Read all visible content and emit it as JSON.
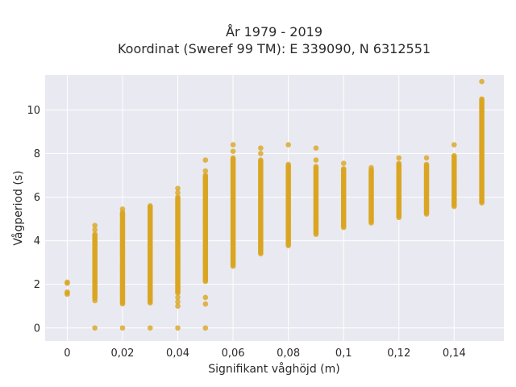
{
  "chart_data": {
    "type": "scatter",
    "title": "År 1979 - 2019",
    "subtitle": "Koordinat (Sweref 99 TM): E 339090, N 6312551",
    "xlabel": "Signifikant våghöjd (m)",
    "ylabel": "Vågperiod (s)",
    "xlim": [
      -0.008,
      0.158
    ],
    "ylim": [
      -0.6,
      11.6
    ],
    "grid": true,
    "legend": "none",
    "colors": {
      "points": "#daa520",
      "plot_bg": "#e9e9f1",
      "grid": "#ffffff"
    },
    "x_ticks": [
      {
        "value": 0,
        "label": "0"
      },
      {
        "value": 0.02,
        "label": "0,02"
      },
      {
        "value": 0.04,
        "label": "0,04"
      },
      {
        "value": 0.06,
        "label": "0,06"
      },
      {
        "value": 0.08,
        "label": "0,08"
      },
      {
        "value": 0.1,
        "label": "0,1"
      },
      {
        "value": 0.12,
        "label": "0,12"
      },
      {
        "value": 0.14,
        "label": "0,14"
      }
    ],
    "y_ticks": [
      {
        "value": 0,
        "label": "0"
      },
      {
        "value": 2,
        "label": "2"
      },
      {
        "value": 4,
        "label": "4"
      },
      {
        "value": 6,
        "label": "6"
      },
      {
        "value": 8,
        "label": "8"
      },
      {
        "value": 10,
        "label": "10"
      }
    ],
    "columns": [
      {
        "x": 0.0,
        "low": 1.5,
        "high": 1.65,
        "extra": [
          2.05,
          2.1
        ]
      },
      {
        "x": 0.01,
        "low": 1.3,
        "high": 4.3,
        "extra": [
          0.0,
          4.5,
          4.7,
          1.25
        ]
      },
      {
        "x": 0.02,
        "low": 1.1,
        "high": 5.3,
        "extra": [
          0.0,
          5.45
        ]
      },
      {
        "x": 0.03,
        "low": 1.1,
        "high": 5.6,
        "extra": [
          0.0
        ]
      },
      {
        "x": 0.04,
        "low": 1.6,
        "high": 6.0,
        "extra": [
          0.0,
          1.0,
          1.2,
          1.4,
          6.2,
          6.4
        ]
      },
      {
        "x": 0.05,
        "low": 2.1,
        "high": 7.0,
        "extra": [
          0.0,
          1.1,
          1.4,
          7.2,
          7.7
        ]
      },
      {
        "x": 0.06,
        "low": 2.8,
        "high": 7.8,
        "extra": [
          8.1,
          8.4
        ]
      },
      {
        "x": 0.07,
        "low": 3.4,
        "high": 7.7,
        "extra": [
          8.0,
          8.25
        ]
      },
      {
        "x": 0.08,
        "low": 3.75,
        "high": 7.5,
        "extra": [
          8.4
        ]
      },
      {
        "x": 0.09,
        "low": 4.25,
        "high": 7.4,
        "extra": [
          7.7,
          8.25
        ]
      },
      {
        "x": 0.1,
        "low": 4.6,
        "high": 7.3,
        "extra": [
          7.55
        ]
      },
      {
        "x": 0.11,
        "low": 4.8,
        "high": 7.25,
        "extra": [
          7.35
        ]
      },
      {
        "x": 0.12,
        "low": 5.05,
        "high": 7.55,
        "extra": [
          7.8
        ]
      },
      {
        "x": 0.13,
        "low": 5.2,
        "high": 7.5,
        "extra": [
          7.8
        ]
      },
      {
        "x": 0.14,
        "low": 5.55,
        "high": 7.9,
        "extra": [
          8.4
        ]
      },
      {
        "x": 0.15,
        "low": 5.7,
        "high": 10.5,
        "extra": [
          11.3
        ]
      }
    ]
  }
}
